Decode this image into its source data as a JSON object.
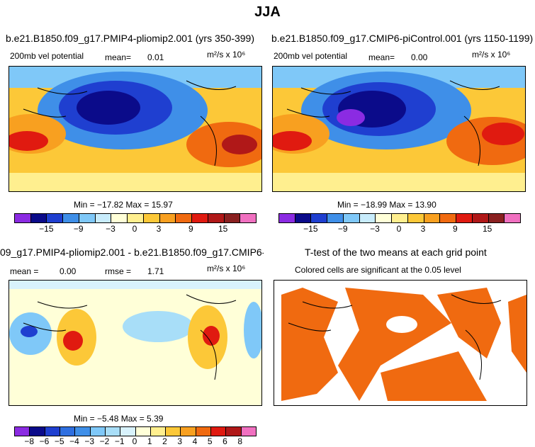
{
  "page_title": "JJA",
  "panels": [
    {
      "title": "b.e21.B1850.f09_g17.PMIP4-pliomip2.001 (yrs 350-399)",
      "left_label": "200mb vel potential",
      "stat_label": "mean=",
      "stat_value": "0.01",
      "units": "m²/s x 10⁶",
      "min_max": "Min = −17.82 Max = 15.97"
    },
    {
      "title": "b.e21.B1850.f09_g17.CMIP6-piControl.001 (yrs 1150-1199)",
      "left_label": "200mb vel potential",
      "stat_label": "mean=",
      "stat_value": "0.00",
      "units": "m²/s x 10⁶",
      "min_max": "Min = −18.99 Max = 13.90"
    },
    {
      "title": "09_g17.PMIP4-pliomip2.001 - b.e21.B1850.f09_g17.CMIP6-piControl.001",
      "left_label": "mean =",
      "stat_value": "0.00",
      "rmse_label": "rmse =",
      "rmse_value": "1.71",
      "units": "m²/s x 10⁶",
      "min_max": "Min = −5.48 Max = 5.39"
    },
    {
      "title": "T-test of the two means at each grid point",
      "subtitle": "Colored cells are significant at the 0.05 level"
    }
  ],
  "colorbar_main": {
    "ticks": [
      "−15",
      "−9",
      "−3",
      "0",
      "3",
      "9",
      "15"
    ],
    "colors": [
      "#8b2be2",
      "#0b0b8a",
      "#1f3fd0",
      "#3f8fe8",
      "#7fc8f8",
      "#c8ecfc",
      "#ffffd8",
      "#ffef8f",
      "#fcc838",
      "#f8a020",
      "#f06a10",
      "#e01a10",
      "#b01818",
      "#8a2020",
      "#f070c0"
    ]
  },
  "colorbar_diff": {
    "ticks": [
      "−8",
      "−6",
      "−5",
      "−4",
      "−3",
      "−2",
      "−1",
      "0",
      "1",
      "2",
      "3",
      "4",
      "5",
      "6",
      "8"
    ],
    "colors": [
      "#8b2be2",
      "#0b0b8a",
      "#1f3fd0",
      "#2f6fe0",
      "#3f8fe8",
      "#7fc8f8",
      "#a8def8",
      "#d8f2fc",
      "#ffffd8",
      "#ffef8f",
      "#fcc838",
      "#f8a020",
      "#f06a10",
      "#e01a10",
      "#b01818",
      "#f070c0"
    ]
  },
  "chart_data": [
    {
      "type": "heatmap",
      "title": "b.e21.B1850.f09_g17.PMIP4-pliomip2.001 (yrs 350-399)",
      "variable": "200mb vel potential",
      "units": "m²/s x 10⁶",
      "mean": 0.01,
      "min": -17.82,
      "max": 15.97,
      "levels": [
        -15,
        -9,
        -3,
        0,
        3,
        9,
        15
      ]
    },
    {
      "type": "heatmap",
      "title": "b.e21.B1850.f09_g17.CMIP6-piControl.001 (yrs 1150-1199)",
      "variable": "200mb vel potential",
      "units": "m²/s x 10⁶",
      "mean": 0.0,
      "min": -18.99,
      "max": 13.9,
      "levels": [
        -15,
        -9,
        -3,
        0,
        3,
        9,
        15
      ]
    },
    {
      "type": "heatmap",
      "title": "difference",
      "units": "m²/s x 10⁶",
      "mean": 0.0,
      "rmse": 1.71,
      "min": -5.48,
      "max": 5.39,
      "levels": [
        -8,
        -6,
        -5,
        -4,
        -3,
        -2,
        -1,
        0,
        1,
        2,
        3,
        4,
        5,
        6,
        8
      ]
    },
    {
      "type": "heatmap",
      "title": "T-test of the two means at each grid point",
      "significance_level": 0.05
    }
  ]
}
